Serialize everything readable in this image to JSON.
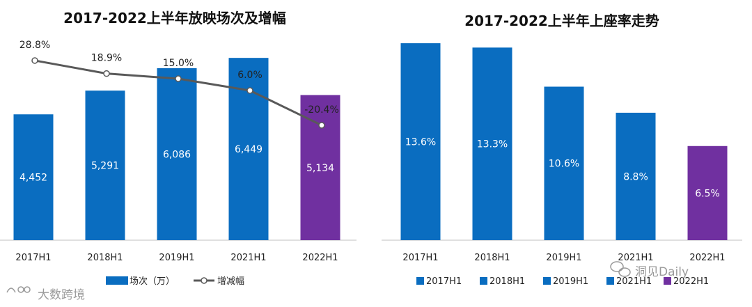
{
  "colors": {
    "blue": "#0A6DC0",
    "purple": "#7030A0",
    "line": "#595959",
    "axis": "#BFBFBF",
    "legend_line": "#595959"
  },
  "chart_data": [
    {
      "type": "bar",
      "title": "2017-2022上半年放映场次及增幅",
      "categories": [
        "2017H1",
        "2018H1",
        "2019H1",
        "2021H1",
        "2022H1"
      ],
      "series": [
        {
          "name": "场次（万）",
          "values": [
            4452,
            5291,
            6086,
            6449,
            5134
          ],
          "labels": [
            "4,452",
            "5,291",
            "6,086",
            "6,449",
            "5,134"
          ]
        },
        {
          "name": "增减幅",
          "type": "line",
          "values": [
            28.8,
            18.9,
            15.0,
            6.0,
            -20.4
          ],
          "labels": [
            "28.8%",
            "18.9%",
            "15.0%",
            "6.0%",
            "-20.4%"
          ]
        }
      ],
      "ylim": [
        0,
        8300
      ],
      "line_ylim": [
        -31,
        42
      ],
      "highlight_index": 4,
      "legend": [
        "场次（万）",
        "增减幅"
      ]
    },
    {
      "type": "bar",
      "title": "2017-2022上半年上座率走势",
      "categories": [
        "2017H1",
        "2018H1",
        "2019H1",
        "2021H1",
        "2022H1"
      ],
      "values": [
        13.6,
        13.3,
        10.6,
        8.8,
        6.5
      ],
      "labels": [
        "13.6%",
        "13.3%",
        "10.6%",
        "8.8%",
        "6.5%"
      ],
      "ylim": [
        0,
        16.2
      ],
      "highlight_index": 4,
      "legend": [
        "2017H1",
        "2018H1",
        "2019H1",
        "2021H1",
        "2022H1"
      ]
    }
  ],
  "watermarks": {
    "left": "大数跨境",
    "right": "洞见Daily"
  }
}
